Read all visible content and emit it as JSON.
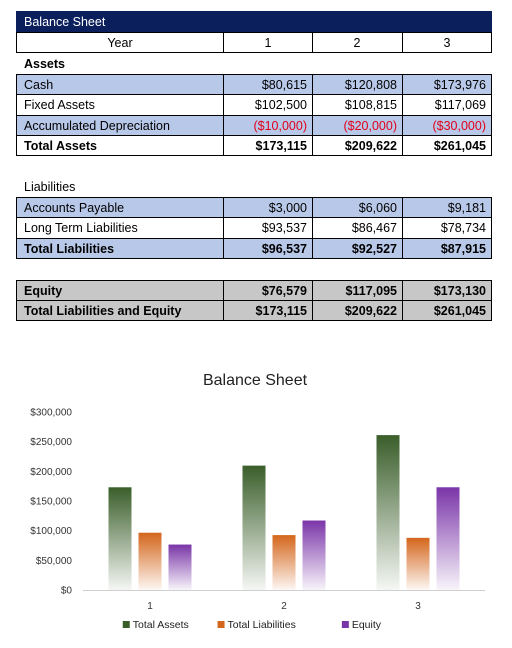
{
  "colors": {
    "header_bg": "#0b1f5c",
    "band_blue": "#b8c8e8",
    "band_gray": "#c7c7c7",
    "negative_text": "#e0001b",
    "total_assets": "#3a5e2a",
    "total_liabilities": "#d4661c",
    "equity": "#7a35a8"
  },
  "sheet": {
    "title": "Balance Sheet",
    "year_label": "Year",
    "years": [
      "1",
      "2",
      "3"
    ],
    "assets": {
      "heading": "Assets",
      "rows": [
        {
          "label": "Cash",
          "values": [
            "$80,615",
            "$120,808",
            "$173,976"
          ]
        },
        {
          "label": "Fixed Assets",
          "values": [
            "$102,500",
            "$108,815",
            "$117,069"
          ]
        },
        {
          "label": "Accumulated Depreciation",
          "values": [
            "($10,000)",
            "($20,000)",
            "($30,000)"
          ]
        }
      ],
      "total": {
        "label": "Total Assets",
        "values": [
          "$173,115",
          "$209,622",
          "$261,045"
        ]
      }
    },
    "liabilities": {
      "heading": "Liabilities",
      "rows": [
        {
          "label": "Accounts Payable",
          "values": [
            "$3,000",
            "$6,060",
            "$9,181"
          ]
        },
        {
          "label": "Long Term Liabilities",
          "values": [
            "$93,537",
            "$86,467",
            "$78,734"
          ]
        }
      ],
      "total": {
        "label": "Total Liabilities",
        "values": [
          "$96,537",
          "$92,527",
          "$87,915"
        ]
      }
    },
    "equity": {
      "label": "Equity",
      "values": [
        "$76,579",
        "$117,095",
        "$173,130"
      ]
    },
    "total_le": {
      "label": "Total Liabilities and Equity",
      "values": [
        "$173,115",
        "$209,622",
        "$261,045"
      ]
    }
  },
  "chart_data": {
    "type": "bar",
    "title": "Balance Sheet",
    "categories": [
      "1",
      "2",
      "3"
    ],
    "series": [
      {
        "name": "Total Assets",
        "values": [
          173115,
          209622,
          261045
        ],
        "color": "#3a5e2a"
      },
      {
        "name": "Total Liabilities",
        "values": [
          96537,
          92527,
          87915
        ],
        "color": "#d4661c"
      },
      {
        "name": "Equity",
        "values": [
          76579,
          117095,
          173130
        ],
        "color": "#7a35a8"
      }
    ],
    "ylim": [
      0,
      300000
    ],
    "yticks": [
      "$0",
      "$50,000",
      "$100,000",
      "$150,000",
      "$200,000",
      "$250,000",
      "$300,000"
    ],
    "grid": false,
    "legend": "bottom"
  }
}
